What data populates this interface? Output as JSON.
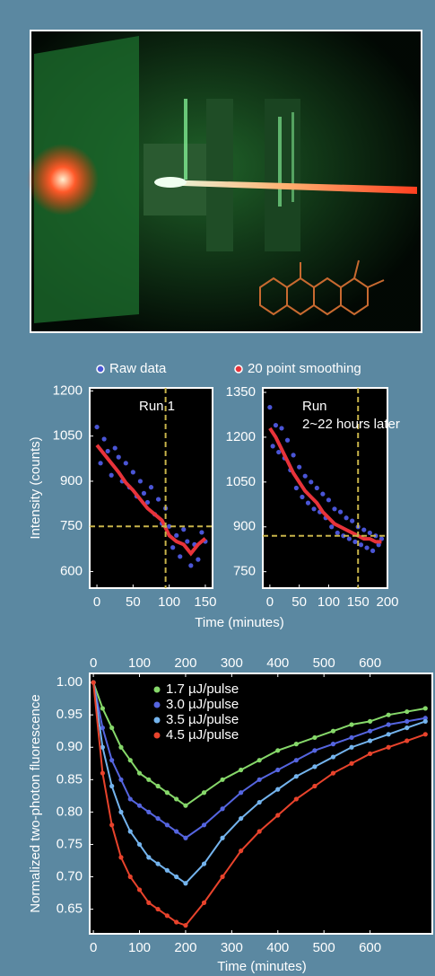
{
  "chart_data": [
    {
      "type": "scatter",
      "xlabel": "Time (minutes)",
      "ylabel": "Intensity (counts)",
      "annotation": "Run 1",
      "xlim": [
        -10,
        160
      ],
      "xticks": [
        0,
        50,
        100,
        150
      ],
      "ylim": [
        545,
        1210
      ],
      "yticks": [
        600,
        750,
        900,
        1050,
        1200
      ],
      "hline": 750,
      "vline": 95,
      "guide_color": "#c8b44a",
      "series": [
        {
          "name": "Raw data",
          "color": "#4a55d6",
          "mode": "markers",
          "x": [
            0,
            5,
            10,
            15,
            20,
            25,
            30,
            35,
            40,
            45,
            50,
            55,
            60,
            65,
            70,
            75,
            80,
            85,
            90,
            95,
            100,
            105,
            110,
            115,
            120,
            125,
            130,
            135,
            140,
            145,
            150
          ],
          "values": [
            1080,
            960,
            1040,
            1000,
            920,
            1010,
            980,
            900,
            960,
            880,
            930,
            850,
            900,
            860,
            830,
            880,
            790,
            840,
            760,
            810,
            750,
            680,
            720,
            650,
            740,
            700,
            620,
            690,
            640,
            730,
            700
          ]
        },
        {
          "name": "20 point smoothing",
          "color": "#e8333a",
          "mode": "line",
          "x": [
            0,
            10,
            20,
            30,
            40,
            50,
            60,
            70,
            80,
            90,
            100,
            110,
            120,
            130,
            140,
            150
          ],
          "values": [
            1020,
            990,
            960,
            930,
            895,
            870,
            840,
            810,
            790,
            770,
            720,
            700,
            690,
            660,
            690,
            710
          ]
        }
      ]
    },
    {
      "type": "scatter",
      "annotation": "Run 2~22 hours later",
      "xlim": [
        -12,
        200
      ],
      "xticks": [
        0,
        50,
        100,
        150,
        200
      ],
      "ylim": [
        695,
        1365
      ],
      "yticks": [
        750,
        900,
        1050,
        1200,
        1350
      ],
      "hline": 870,
      "vline": 150,
      "guide_color": "#c8b44a",
      "series": [
        {
          "color": "#4a55d6",
          "mode": "markers",
          "x": [
            0,
            5,
            10,
            15,
            20,
            25,
            30,
            35,
            40,
            45,
            50,
            55,
            60,
            65,
            70,
            75,
            80,
            85,
            90,
            95,
            100,
            105,
            110,
            115,
            120,
            125,
            130,
            135,
            140,
            145,
            150,
            155,
            160,
            165,
            170,
            175,
            180,
            185,
            190
          ],
          "values": [
            1300,
            1170,
            1240,
            1150,
            1230,
            1130,
            1190,
            1090,
            1140,
            1030,
            1100,
            1000,
            1070,
            980,
            1050,
            960,
            1030,
            950,
            1010,
            930,
            990,
            900,
            960,
            880,
            950,
            870,
            930,
            860,
            920,
            850,
            900,
            840,
            890,
            830,
            880,
            820,
            870,
            840,
            860
          ]
        },
        {
          "color": "#e8333a",
          "mode": "line",
          "x": [
            0,
            10,
            20,
            30,
            40,
            50,
            60,
            70,
            80,
            90,
            100,
            110,
            120,
            130,
            140,
            150,
            160,
            170,
            180,
            190
          ],
          "values": [
            1230,
            1200,
            1160,
            1120,
            1080,
            1050,
            1020,
            1000,
            980,
            950,
            930,
            910,
            900,
            890,
            880,
            870,
            860,
            860,
            850,
            850
          ]
        }
      ]
    },
    {
      "type": "scatter",
      "xlabel": "Time (minutes)",
      "ylabel": "Normalized two-photon fluorescence",
      "xlim": [
        -8,
        735
      ],
      "xticks": [
        0,
        100,
        200,
        300,
        400,
        500,
        600
      ],
      "x2ticks": [
        0,
        100,
        200,
        300,
        400,
        500,
        600
      ],
      "ylim": [
        0.612,
        1.014
      ],
      "yticks": [
        {
          "value": 1,
          "label": "1.00"
        },
        0.95,
        {
          "value": 0.9,
          "label": "0.90"
        },
        0.85,
        {
          "value": 0.8,
          "label": "0.80"
        },
        0.75,
        {
          "value": 0.7,
          "label": "0.70"
        },
        0.65
      ],
      "legend": "upper left",
      "series": [
        {
          "name": "1.7 µJ/pulse",
          "color": "#86d86a",
          "mode": "markers+line",
          "x": [
            0,
            20,
            40,
            60,
            80,
            100,
            120,
            140,
            160,
            180,
            200,
            240,
            280,
            320,
            360,
            400,
            440,
            480,
            520,
            560,
            600,
            640,
            680,
            720
          ],
          "values": [
            1.0,
            0.96,
            0.93,
            0.9,
            0.88,
            0.86,
            0.85,
            0.84,
            0.83,
            0.82,
            0.81,
            0.83,
            0.85,
            0.865,
            0.88,
            0.895,
            0.905,
            0.915,
            0.925,
            0.935,
            0.94,
            0.95,
            0.955,
            0.96
          ]
        },
        {
          "name": "3.0 µJ/pulse",
          "color": "#5565e0",
          "mode": "markers+line",
          "x": [
            0,
            20,
            40,
            60,
            80,
            100,
            120,
            140,
            160,
            180,
            200,
            240,
            280,
            320,
            360,
            400,
            440,
            480,
            520,
            560,
            600,
            640,
            680,
            720
          ],
          "values": [
            1.0,
            0.93,
            0.88,
            0.85,
            0.82,
            0.81,
            0.8,
            0.79,
            0.78,
            0.77,
            0.76,
            0.78,
            0.805,
            0.83,
            0.85,
            0.865,
            0.88,
            0.895,
            0.905,
            0.915,
            0.925,
            0.935,
            0.94,
            0.945
          ]
        },
        {
          "name": "3.5 µJ/pulse",
          "color": "#74b4ee",
          "mode": "markers+line",
          "x": [
            0,
            20,
            40,
            60,
            80,
            100,
            120,
            140,
            160,
            180,
            200,
            240,
            280,
            320,
            360,
            400,
            440,
            480,
            520,
            560,
            600,
            640,
            680,
            720
          ],
          "values": [
            1.0,
            0.9,
            0.84,
            0.8,
            0.77,
            0.75,
            0.73,
            0.72,
            0.71,
            0.7,
            0.69,
            0.72,
            0.76,
            0.79,
            0.815,
            0.835,
            0.855,
            0.87,
            0.885,
            0.9,
            0.91,
            0.92,
            0.93,
            0.94
          ]
        },
        {
          "name": "4.5 µJ/pulse",
          "color": "#e8432c",
          "mode": "markers+line",
          "x": [
            0,
            20,
            40,
            60,
            80,
            100,
            120,
            140,
            160,
            180,
            200,
            240,
            280,
            320,
            360,
            400,
            440,
            480,
            520,
            560,
            600,
            640,
            680,
            720
          ],
          "values": [
            1.0,
            0.86,
            0.78,
            0.73,
            0.7,
            0.68,
            0.66,
            0.65,
            0.64,
            0.63,
            0.625,
            0.66,
            0.7,
            0.74,
            0.77,
            0.795,
            0.82,
            0.84,
            0.86,
            0.875,
            0.89,
            0.9,
            0.91,
            0.92
          ]
        }
      ]
    }
  ]
}
